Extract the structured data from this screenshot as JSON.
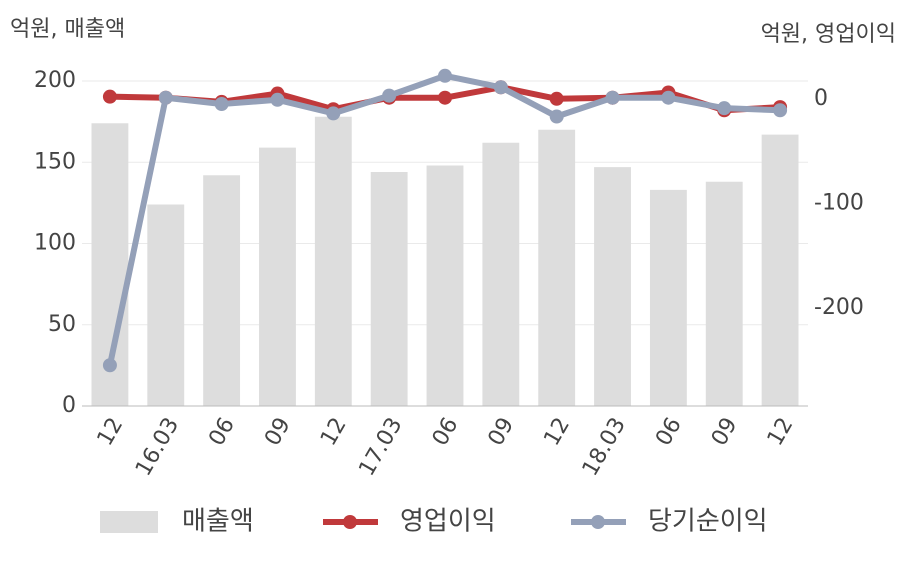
{
  "chart_data": {
    "type": "bar_line",
    "y_label": "억원, 매출액",
    "y2_label": "억원, 영업이익",
    "categories": [
      "12",
      "16.03",
      "06",
      "09",
      "12",
      "17.03",
      "06",
      "09",
      "12",
      "18.03",
      "06",
      "09",
      "12"
    ],
    "series": [
      {
        "name": "매출액",
        "type": "bar",
        "color": "#dddddd",
        "values": [
          174,
          124,
          142,
          159,
          178,
          144,
          148,
          162,
          170,
          147,
          133,
          138,
          167
        ]
      },
      {
        "name": "영업이익",
        "type": "line",
        "axis": "y2",
        "color": "#c0393b",
        "values": [
          2,
          1,
          -3,
          5,
          -10,
          1,
          1,
          11,
          0,
          1,
          6,
          -11,
          -8
        ]
      },
      {
        "name": "당기순이익",
        "type": "line",
        "axis": "y2",
        "color": "#94a0b8",
        "values": [
          -255,
          1,
          -5,
          -1,
          -14,
          3,
          22,
          11,
          -17,
          1,
          1,
          -9,
          -11
        ]
      }
    ],
    "ylim": [
      0,
      200
    ],
    "yticks": [
      0,
      50,
      100,
      150,
      200
    ],
    "y2lim": [
      -294,
      17
    ],
    "y2ticks": [
      0,
      -100,
      -200
    ],
    "grid": true,
    "legend": "bottom"
  }
}
